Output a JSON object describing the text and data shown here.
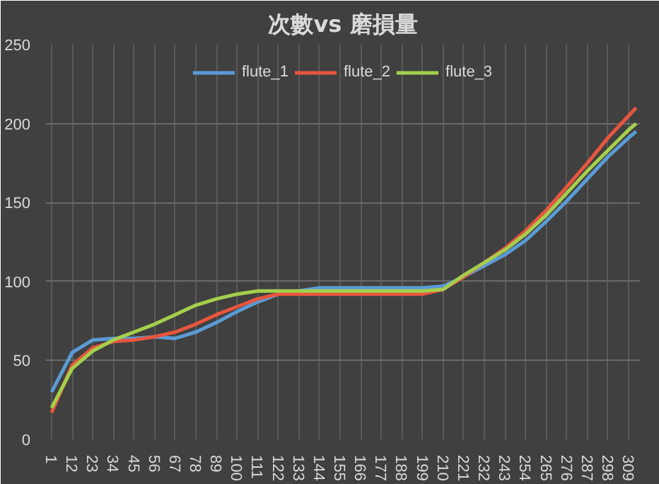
{
  "chart_data": {
    "type": "line",
    "title": "次數vs 磨損量",
    "legend": "top",
    "grid": true,
    "x": [
      1,
      12,
      23,
      34,
      45,
      56,
      67,
      78,
      89,
      100,
      111,
      122,
      133,
      144,
      155,
      166,
      177,
      188,
      199,
      210,
      221,
      232,
      243,
      254,
      265,
      276,
      287,
      298,
      309,
      313
    ],
    "series": [
      {
        "name": "flute_1",
        "color": "#5b9bd5",
        "values": [
          30,
          55,
          63,
          64,
          64,
          65,
          64,
          68,
          74,
          81,
          87,
          92,
          94,
          96,
          96,
          96,
          96,
          96,
          96,
          97,
          103,
          110,
          117,
          126,
          138,
          151,
          165,
          179,
          191,
          195
        ]
      },
      {
        "name": "flute_2",
        "color": "#e8553e",
        "values": [
          17,
          47,
          58,
          62,
          63,
          65,
          68,
          73,
          79,
          84,
          89,
          92,
          92,
          92,
          92,
          92,
          92,
          92,
          92,
          95,
          103,
          112,
          121,
          132,
          145,
          160,
          175,
          191,
          205,
          210
        ]
      },
      {
        "name": "flute_3",
        "color": "#a5cf4c",
        "values": [
          20,
          45,
          56,
          63,
          68,
          73,
          79,
          85,
          89,
          92,
          94,
          94,
          94,
          94,
          94,
          94,
          94,
          94,
          94,
          95,
          104,
          112,
          120,
          130,
          142,
          156,
          170,
          183,
          196,
          200
        ]
      }
    ],
    "xlim": [
      -2,
      315
    ],
    "xticks": [
      1,
      12,
      23,
      34,
      45,
      56,
      67,
      78,
      89,
      100,
      111,
      122,
      133,
      144,
      155,
      166,
      177,
      188,
      199,
      210,
      221,
      232,
      243,
      254,
      265,
      276,
      287,
      298,
      309
    ],
    "ylim": [
      0,
      250
    ],
    "yticks": [
      0,
      50,
      100,
      150,
      200,
      250
    ]
  }
}
